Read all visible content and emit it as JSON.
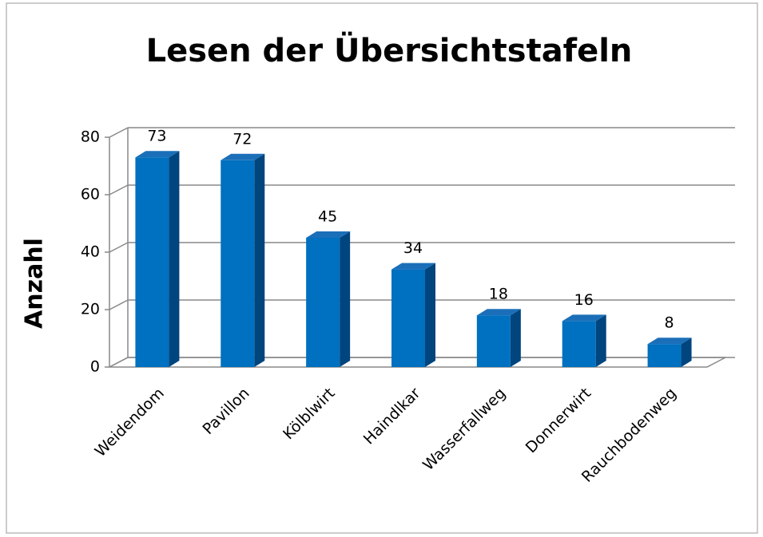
{
  "chart_data": {
    "type": "bar3d",
    "title": "Lesen der Übersichtstafeln",
    "y_label": "Anzahl",
    "categories": [
      "Weidendom",
      "Pavillon",
      "Kölblwirt",
      "Haindlkar",
      "Wasserfallweg",
      "Donnerwirt",
      "Rauchbodenweg"
    ],
    "values": [
      73,
      72,
      45,
      34,
      18,
      16,
      8
    ],
    "color": "#0070c0",
    "ylim": [
      0,
      80
    ],
    "yticks": [
      0,
      20,
      40,
      60,
      80
    ],
    "grid": true
  }
}
